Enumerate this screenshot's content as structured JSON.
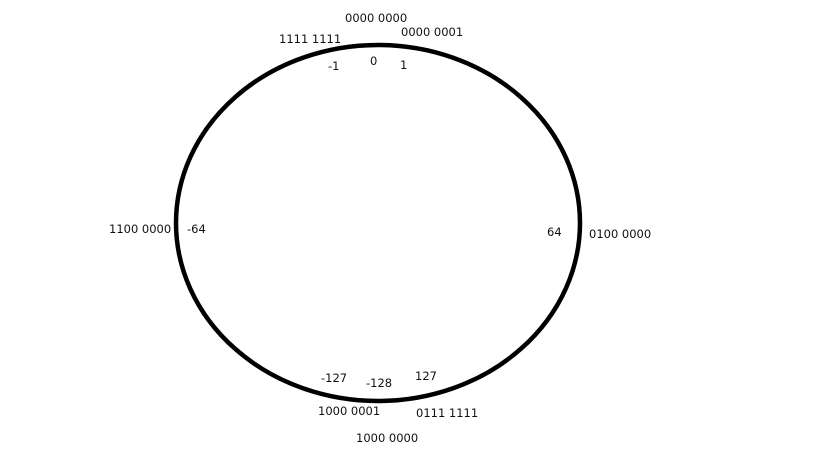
{
  "diagram": {
    "stroke_color": "#000000",
    "markers": [
      {
        "id": "zero",
        "binary": "0000 0000",
        "value": "0"
      },
      {
        "id": "one",
        "binary": "0000 0001",
        "value": "1"
      },
      {
        "id": "minus-one",
        "binary": "1111 1111",
        "value": "-1"
      },
      {
        "id": "plus-64",
        "binary": "0100 0000",
        "value": "64"
      },
      {
        "id": "minus-64",
        "binary": "1100 0000",
        "value": "-64"
      },
      {
        "id": "plus-127",
        "binary": "0111 1111",
        "value": "127"
      },
      {
        "id": "minus-127",
        "binary": "1000 0001",
        "value": "-127"
      },
      {
        "id": "minus-128",
        "binary": "1000 0000",
        "value": "-128"
      }
    ]
  }
}
